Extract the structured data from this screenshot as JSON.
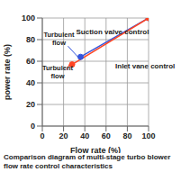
{
  "chart_data": {
    "type": "line",
    "title": "Comparison diagram of multi-stage turbo blower flow rate control characteristics",
    "x_label": "Flow rate (%)",
    "y_label": "power rate (%)",
    "xlim": [
      0,
      100
    ],
    "xticks": [
      0,
      20,
      40,
      60,
      80,
      100
    ],
    "ylim": [
      0,
      100
    ],
    "yticks": [
      0,
      20,
      40,
      60,
      80,
      100
    ],
    "grid": true,
    "series": [
      {
        "name": "Suction valve control",
        "color": "#3355dd",
        "x": [
          36,
          100
        ],
        "values": [
          64,
          100
        ],
        "marker": "circle"
      },
      {
        "name": "Inlet vane control",
        "color": "#ff4422",
        "x": [
          28,
          100
        ],
        "values": [
          57,
          100
        ],
        "marker": "circle"
      }
    ],
    "annotations": [
      {
        "text": "Turbulent flow",
        "series": "Suction valve control"
      },
      {
        "text": "Turbulent flow",
        "series": "Inlet vane control"
      }
    ]
  }
}
